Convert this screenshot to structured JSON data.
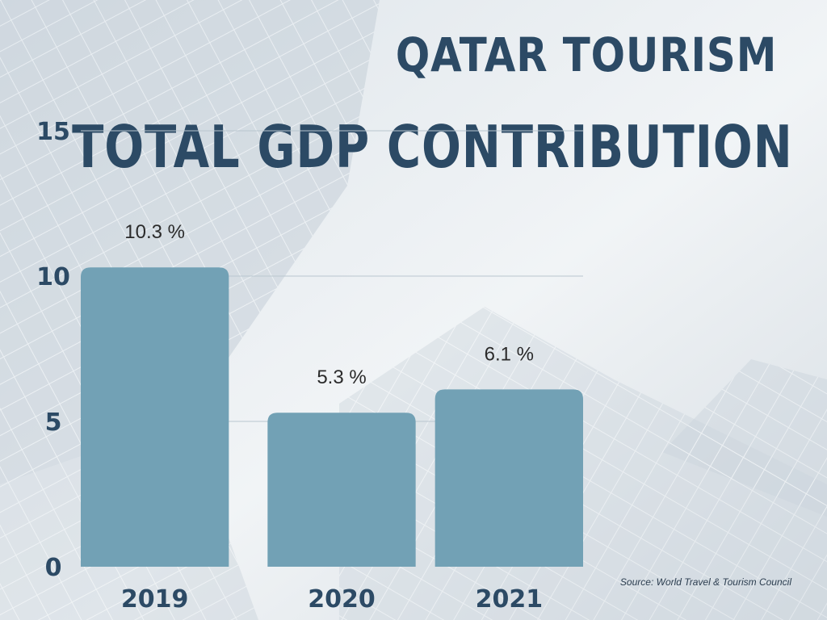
{
  "title_line1": "QATAR TOURISM",
  "title_line2": "TOTAL GDP CONTRIBUTION",
  "source": "Source: World Travel & Tourism Council",
  "colors": {
    "bar": "#72a1b5",
    "title": "#2c4a65",
    "gridline": "#b9c6cf"
  },
  "chart_data": {
    "type": "bar",
    "title": "QATAR TOURISM TOTAL GDP CONTRIBUTION",
    "categories": [
      "2019",
      "2020",
      "2021"
    ],
    "values": [
      10.3,
      5.3,
      6.1
    ],
    "data_labels": [
      "10.3 %",
      "5.3 %",
      "6.1 %"
    ],
    "yticks": [
      0,
      5,
      10,
      15
    ],
    "ylim": [
      0,
      15
    ],
    "xlabel": "",
    "ylabel": "",
    "grid": true
  }
}
